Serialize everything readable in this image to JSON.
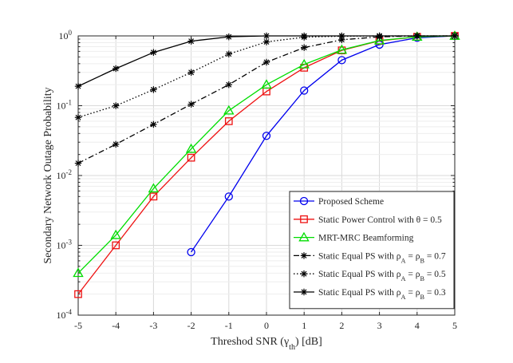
{
  "chart_data": {
    "type": "line",
    "title": "",
    "xlabel": "Threshod SNR (γ_th)  [dB]",
    "ylabel": "Secondary Network Outage Probability",
    "x_scale": "linear",
    "y_scale": "log",
    "xlim": [
      -5,
      5
    ],
    "ylim": [
      0.0001,
      1
    ],
    "x_ticks": [
      -5,
      -4,
      -3,
      -2,
      -1,
      0,
      1,
      2,
      3,
      4,
      5
    ],
    "y_ticks": [
      0.0001,
      0.001,
      0.01,
      0.1,
      1
    ],
    "y_tick_labels": [
      {
        "base": "10",
        "exp": "-4"
      },
      {
        "base": "10",
        "exp": "-3"
      },
      {
        "base": "10",
        "exp": "-2"
      },
      {
        "base": "10",
        "exp": "-1"
      },
      {
        "base": "10",
        "exp": "0"
      }
    ],
    "grid": true,
    "legend_position": "lower-right",
    "series": [
      {
        "name": "Proposed Scheme",
        "color": "#0000ee",
        "line_style": "solid",
        "marker": "circle",
        "x": [
          -2,
          -1,
          0,
          1,
          2,
          3,
          4,
          5
        ],
        "y": [
          0.0008,
          0.005,
          0.037,
          0.165,
          0.45,
          0.75,
          0.94,
          1.0
        ]
      },
      {
        "name": "Static Power Control with θ = 0.5",
        "color": "#ee1111",
        "line_style": "solid",
        "marker": "square",
        "x": [
          -5,
          -4,
          -3,
          -2,
          -1,
          0,
          1,
          2,
          3,
          4,
          5
        ],
        "y": [
          0.0002,
          0.001,
          0.005,
          0.018,
          0.06,
          0.16,
          0.35,
          0.62,
          0.85,
          0.97,
          1.0
        ]
      },
      {
        "name": "MRT-MRC Beamforming",
        "color": "#00dd00",
        "line_style": "solid",
        "marker": "triangle",
        "x": [
          -5,
          -4,
          -3,
          -2,
          -1,
          0,
          1,
          2,
          3,
          4,
          5
        ],
        "y": [
          0.0004,
          0.0014,
          0.0065,
          0.024,
          0.085,
          0.2,
          0.39,
          0.63,
          0.86,
          0.97,
          1.0
        ]
      },
      {
        "name": "Static Equal PS with ρ_A = ρ_B = 0.7",
        "color": "#000000",
        "line_style": "dashdot",
        "marker": "asterisk",
        "x": [
          -5,
          -4,
          -3,
          -2,
          -1,
          0,
          1,
          2,
          3,
          4,
          5
        ],
        "y": [
          0.015,
          0.028,
          0.054,
          0.105,
          0.2,
          0.42,
          0.68,
          0.88,
          0.97,
          1.0,
          1.0
        ]
      },
      {
        "name": "Static Equal PS with ρ_A = ρ_B = 0.5",
        "color": "#000000",
        "line_style": "dotted",
        "marker": "asterisk",
        "x": [
          -5,
          -4,
          -3,
          -2,
          -1,
          0,
          1,
          2,
          3,
          4,
          5
        ],
        "y": [
          0.068,
          0.1,
          0.17,
          0.3,
          0.55,
          0.82,
          0.96,
          0.99,
          1.0,
          1.0,
          1.0
        ]
      },
      {
        "name": "Static Equal PS with ρ_A = ρ_B = 0.3",
        "color": "#000000",
        "line_style": "solid",
        "marker": "asterisk",
        "x": [
          -5,
          -4,
          -3,
          -2,
          -1,
          0,
          1,
          2,
          3,
          4,
          5
        ],
        "y": [
          0.19,
          0.34,
          0.58,
          0.84,
          0.97,
          1.0,
          1.0,
          1.0,
          1.0,
          1.0,
          1.0
        ]
      }
    ]
  }
}
